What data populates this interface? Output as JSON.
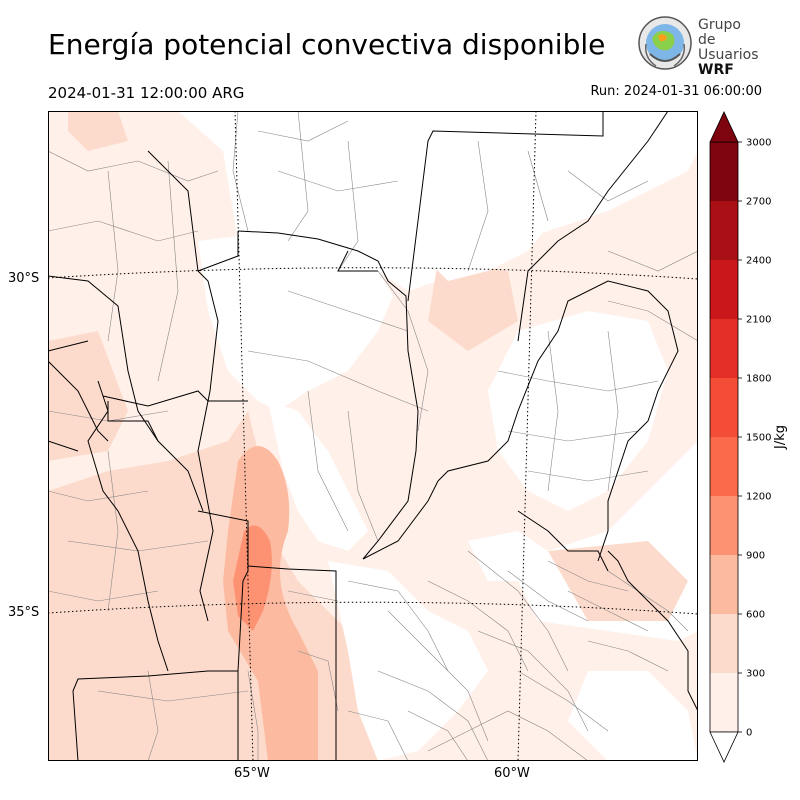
{
  "header": {
    "title": "Energía potencial convectiva disponible",
    "valid_time": "2024-01-31 12:00:00 ARG",
    "run_time": "Run: 2024-01-31 06:00:00"
  },
  "logo": {
    "line1": "Grupo de",
    "line2": "Usuarios",
    "line3": "WRF"
  },
  "map": {
    "lat_labels": [
      "30°S",
      "35°S"
    ],
    "lon_labels": [
      "65°W",
      "60°W"
    ],
    "colors": {
      "border_province": "#000000",
      "border_department": "#888888",
      "graticule": "#000000"
    }
  },
  "colorbar": {
    "label": "J/kg",
    "ticks": [
      "0",
      "300",
      "600",
      "900",
      "1200",
      "1500",
      "1800",
      "2100",
      "2400",
      "2700",
      "3000"
    ],
    "colors": [
      "#fff0e9",
      "#fddbcc",
      "#fcbba1",
      "#fc9272",
      "#fb6a4a",
      "#f44d37",
      "#e32f27",
      "#c9171c",
      "#a91016",
      "#7e0510"
    ],
    "extend": "both"
  }
}
